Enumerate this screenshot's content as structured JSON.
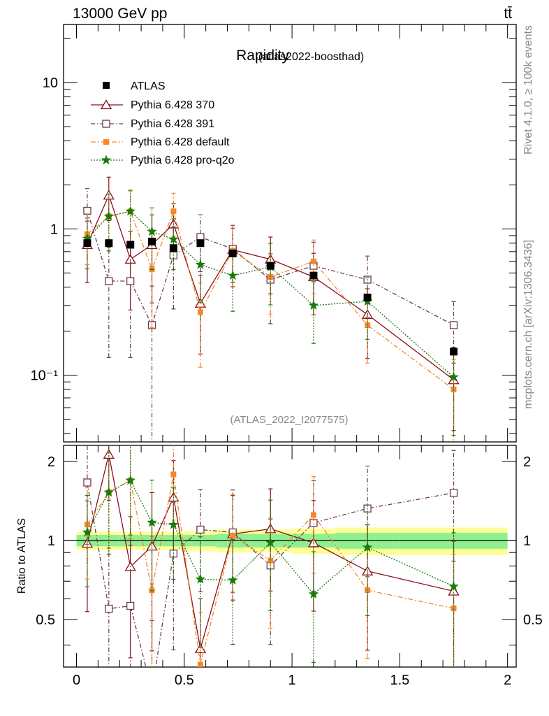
{
  "header": {
    "energy_label": "13000 GeV pp",
    "process_label": "tt̄"
  },
  "side": {
    "rivet_label": "Rivet 4.1.0, ≥ 100k events",
    "mcplots_label": "mcplots.cern.ch [arXiv:1306.3436]"
  },
  "colors": {
    "ATLAS": "#000000",
    "p370": "#8b0e1c",
    "p391": "#6b3a4e",
    "pdefault": "#f5882a",
    "pq2o": "#1a7a0a",
    "band_inner": "#90f090",
    "band_outer": "#ffff99"
  },
  "chart_data": {
    "type": "scatter",
    "title": "Rapidity",
    "subtitle": "(atlas2022-boosthad)",
    "watermark": "(ATLAS_2022_I2077575)",
    "ylabel_ratio": "Ratio to ATLAS",
    "xlim": [
      -0.06,
      2.04
    ],
    "ylim_main": [
      0.035,
      25
    ],
    "ylim_ratio": [
      0.33,
      2.3
    ],
    "yscale_main": "log",
    "main_tick_labels": [
      "10",
      "1",
      "10⁻¹"
    ],
    "main_tick_values": [
      10,
      1,
      0.1
    ],
    "ratio_tick_labels": [
      "2",
      "1",
      "0.5"
    ],
    "ratio_tick_values": [
      2,
      1,
      0.5
    ],
    "x_tick_labels": [
      "0",
      "0.5",
      "1",
      "1.5",
      "2"
    ],
    "x_tick_values": [
      0,
      0.5,
      1,
      1.5,
      2
    ],
    "x_bins": [
      [
        0.0,
        0.1
      ],
      [
        0.1,
        0.2
      ],
      [
        0.2,
        0.3
      ],
      [
        0.3,
        0.4
      ],
      [
        0.4,
        0.5
      ],
      [
        0.5,
        0.65
      ],
      [
        0.65,
        0.8
      ],
      [
        0.8,
        1.0
      ],
      [
        1.0,
        1.2
      ],
      [
        1.2,
        1.5
      ],
      [
        1.5,
        2.0
      ]
    ],
    "x": [
      0.05,
      0.15,
      0.25,
      0.35,
      0.45,
      0.575,
      0.725,
      0.9,
      1.1,
      1.35,
      1.75
    ],
    "atlas": {
      "name": "ATLAS",
      "values": [
        0.8,
        0.8,
        0.78,
        0.82,
        0.74,
        0.8,
        0.68,
        0.56,
        0.48,
        0.34,
        0.145
      ],
      "band_inner": [
        0.05,
        0.05,
        0.05,
        0.05,
        0.05,
        0.05,
        0.06,
        0.06,
        0.06,
        0.07,
        0.07
      ],
      "band_outer": [
        0.08,
        0.08,
        0.08,
        0.08,
        0.08,
        0.09,
        0.1,
        0.1,
        0.11,
        0.12,
        0.12
      ]
    },
    "series": [
      {
        "name": "Pythia 6.428 370",
        "color_key": "p370",
        "marker": "triangle-open",
        "dash": "",
        "values": [
          0.78,
          1.7,
          0.62,
          0.78,
          1.08,
          0.31,
          0.72,
          0.62,
          0.47,
          0.26,
          0.093
        ],
        "err_frac": [
          0.45,
          0.33,
          0.55,
          0.6,
          0.38,
          0.55,
          0.4,
          0.42,
          0.45,
          0.5,
          0.55
        ]
      },
      {
        "name": "Pythia 6.428 391",
        "color_key": "p391",
        "marker": "square-open",
        "dash": "6,3,1.5,3",
        "values": [
          1.33,
          0.44,
          0.44,
          0.22,
          0.66,
          0.88,
          0.73,
          0.45,
          0.56,
          0.45,
          0.22
        ],
        "err_frac": [
          0.42,
          0.7,
          0.7,
          0.85,
          0.57,
          0.42,
          0.45,
          0.5,
          0.45,
          0.45,
          0.45
        ]
      },
      {
        "name": "Pythia 6.428 default",
        "color_key": "pdefault",
        "marker": "square-filled",
        "dash": "7,3,2,3",
        "values": [
          0.92,
          1.22,
          1.32,
          0.53,
          1.32,
          0.27,
          0.71,
          0.47,
          0.6,
          0.22,
          0.08
        ],
        "err_frac": [
          0.38,
          0.42,
          0.4,
          0.6,
          0.33,
          0.58,
          0.43,
          0.45,
          0.4,
          0.45,
          0.6
        ]
      },
      {
        "name": "Pythia 6.428 pro-q2o",
        "color_key": "pq2o",
        "marker": "star",
        "dash": "2,2",
        "values": [
          0.86,
          1.22,
          1.32,
          0.96,
          0.85,
          0.57,
          0.48,
          0.55,
          0.3,
          0.32,
          0.097
        ],
        "err_frac": [
          0.38,
          0.42,
          0.38,
          0.45,
          0.38,
          0.45,
          0.43,
          0.45,
          0.45,
          0.45,
          0.6
        ]
      }
    ]
  }
}
